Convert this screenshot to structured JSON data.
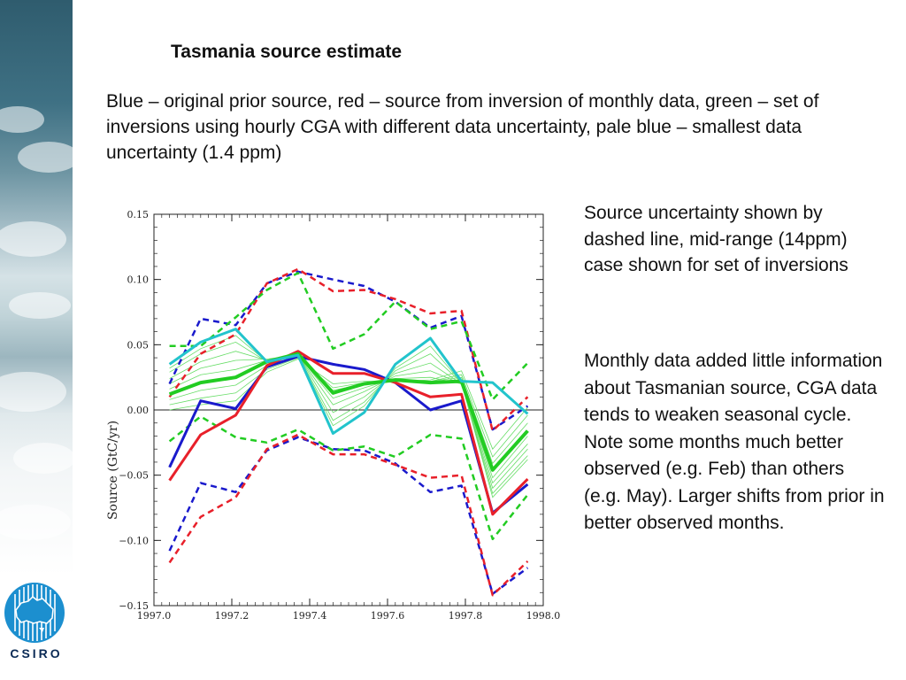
{
  "slide": {
    "title": "Tasmania source estimate",
    "description": "Blue – original prior source, red – source from inversion of monthly data, green – set of inversions using hourly CGA with different data uncertainty, pale blue – smallest data uncertainty (1.4 ppm)",
    "note_uncertainty": "Source uncertainty shown by dashed line, mid-range (14ppm) case shown for set of inversions",
    "note_monthly": "Monthly data added little information about Tasmanian source, CGA data tends to weaken seasonal cycle. Note some months much better observed (e.g. Feb) than others (e.g. May). Larger shifts from prior in better observed months.",
    "logo_text": "CSIRO"
  },
  "colors": {
    "blue": "#1a1acc",
    "red": "#e8202a",
    "green": "#22cc22",
    "light_green": "#66dd66",
    "cyan": "#22c4cc",
    "logo_blue": "#1c8fcf"
  },
  "chart_data": {
    "type": "line",
    "title": "",
    "xlabel": "",
    "ylabel": "Source (GtC/yr)",
    "xlim": [
      1997.0,
      1998.0
    ],
    "ylim": [
      -0.15,
      0.15
    ],
    "xticks": [
      1997.0,
      1997.2,
      1997.4,
      1997.6,
      1997.8,
      1998.0
    ],
    "xtick_labels": [
      "1997.0",
      "1997.2",
      "1997.4",
      "1997.6",
      "1997.8",
      "1998.0"
    ],
    "yticks": [
      -0.15,
      -0.1,
      -0.05,
      0.0,
      0.05,
      0.1,
      0.15
    ],
    "ytick_labels": [
      "−0.15",
      "−0.10",
      "−0.05",
      "0.00",
      "0.05",
      "0.10",
      "0.15"
    ],
    "zero_line": true,
    "x": [
      1997.04,
      1997.12,
      1997.21,
      1997.29,
      1997.37,
      1997.46,
      1997.54,
      1997.62,
      1997.71,
      1997.79,
      1997.87,
      1997.96
    ],
    "series": [
      {
        "name": "",
        "color": "blue",
        "style": "solid",
        "width": 3,
        "values": [
          -0.044,
          0.007,
          0.001,
          0.033,
          0.041,
          0.035,
          0.031,
          0.021,
          0.0,
          0.007,
          -0.079,
          -0.057
        ]
      },
      {
        "name": "",
        "color": "red",
        "style": "solid",
        "width": 3,
        "values": [
          -0.054,
          -0.019,
          -0.004,
          0.034,
          0.045,
          0.028,
          0.028,
          0.021,
          0.01,
          0.012,
          -0.08,
          -0.053
        ]
      },
      {
        "name": "",
        "color": "green",
        "style": "solid",
        "width": 4,
        "values": [
          0.012,
          0.021,
          0.025,
          0.037,
          0.043,
          0.013,
          0.02,
          0.023,
          0.021,
          0.022,
          -0.046,
          -0.016
        ]
      },
      {
        "name": "",
        "color": "cyan",
        "style": "solid",
        "width": 3,
        "values": [
          0.035,
          0.052,
          0.062,
          0.037,
          0.042,
          -0.018,
          -0.002,
          0.035,
          0.055,
          0.022,
          0.021,
          -0.003
        ]
      },
      {
        "name": "",
        "color": "blue",
        "style": "dashed",
        "width": 2.5,
        "values": [
          0.02,
          0.07,
          0.065,
          0.097,
          0.106,
          0.1,
          0.095,
          0.083,
          0.063,
          0.072,
          -0.015,
          0.003
        ]
      },
      {
        "name": "",
        "color": "blue",
        "style": "dashed",
        "width": 2.5,
        "values": [
          -0.108,
          -0.056,
          -0.063,
          -0.031,
          -0.021,
          -0.03,
          -0.031,
          -0.041,
          -0.063,
          -0.058,
          -0.141,
          -0.121
        ]
      },
      {
        "name": "",
        "color": "red",
        "style": "dashed",
        "width": 2.5,
        "values": [
          0.01,
          0.043,
          0.058,
          0.097,
          0.108,
          0.091,
          0.092,
          0.085,
          0.074,
          0.076,
          -0.016,
          0.01
        ]
      },
      {
        "name": "",
        "color": "red",
        "style": "dashed",
        "width": 2.5,
        "values": [
          -0.117,
          -0.082,
          -0.067,
          -0.03,
          -0.019,
          -0.034,
          -0.034,
          -0.042,
          -0.052,
          -0.05,
          -0.142,
          -0.116
        ]
      },
      {
        "name": "",
        "color": "green",
        "style": "dashed",
        "width": 2.5,
        "values": [
          0.049,
          0.049,
          0.071,
          0.092,
          0.105,
          0.047,
          0.058,
          0.083,
          0.062,
          0.068,
          0.008,
          0.036
        ]
      },
      {
        "name": "",
        "color": "green",
        "style": "dashed",
        "width": 2.5,
        "values": [
          -0.024,
          -0.005,
          -0.021,
          -0.025,
          -0.015,
          -0.031,
          -0.028,
          -0.036,
          -0.019,
          -0.022,
          -0.099,
          -0.065
        ]
      }
    ],
    "ensemble": {
      "color": "light_green",
      "members": [
        [
          0.0,
          0.004,
          0.007,
          0.029,
          0.039,
          0.02,
          0.022,
          0.022,
          0.023,
          0.03,
          -0.03,
          0.002
        ],
        [
          0.004,
          0.009,
          0.013,
          0.031,
          0.04,
          0.017,
          0.021,
          0.022,
          0.022,
          0.027,
          -0.036,
          -0.004
        ],
        [
          0.008,
          0.015,
          0.019,
          0.034,
          0.041,
          0.015,
          0.02,
          0.022,
          0.022,
          0.025,
          -0.041,
          -0.01
        ],
        [
          0.016,
          0.027,
          0.031,
          0.038,
          0.042,
          0.009,
          0.017,
          0.024,
          0.025,
          0.02,
          -0.052,
          -0.02
        ],
        [
          0.02,
          0.032,
          0.038,
          0.039,
          0.042,
          0.004,
          0.014,
          0.026,
          0.03,
          0.02,
          -0.056,
          -0.026
        ],
        [
          0.024,
          0.037,
          0.045,
          0.038,
          0.042,
          -0.002,
          0.01,
          0.028,
          0.036,
          0.02,
          -0.06,
          -0.03
        ],
        [
          0.029,
          0.043,
          0.052,
          0.037,
          0.042,
          -0.008,
          0.006,
          0.03,
          0.043,
          0.021,
          -0.064,
          -0.035
        ],
        [
          0.032,
          0.047,
          0.057,
          0.037,
          0.042,
          -0.012,
          0.003,
          0.032,
          0.049,
          0.021,
          -0.067,
          -0.038
        ]
      ]
    }
  }
}
